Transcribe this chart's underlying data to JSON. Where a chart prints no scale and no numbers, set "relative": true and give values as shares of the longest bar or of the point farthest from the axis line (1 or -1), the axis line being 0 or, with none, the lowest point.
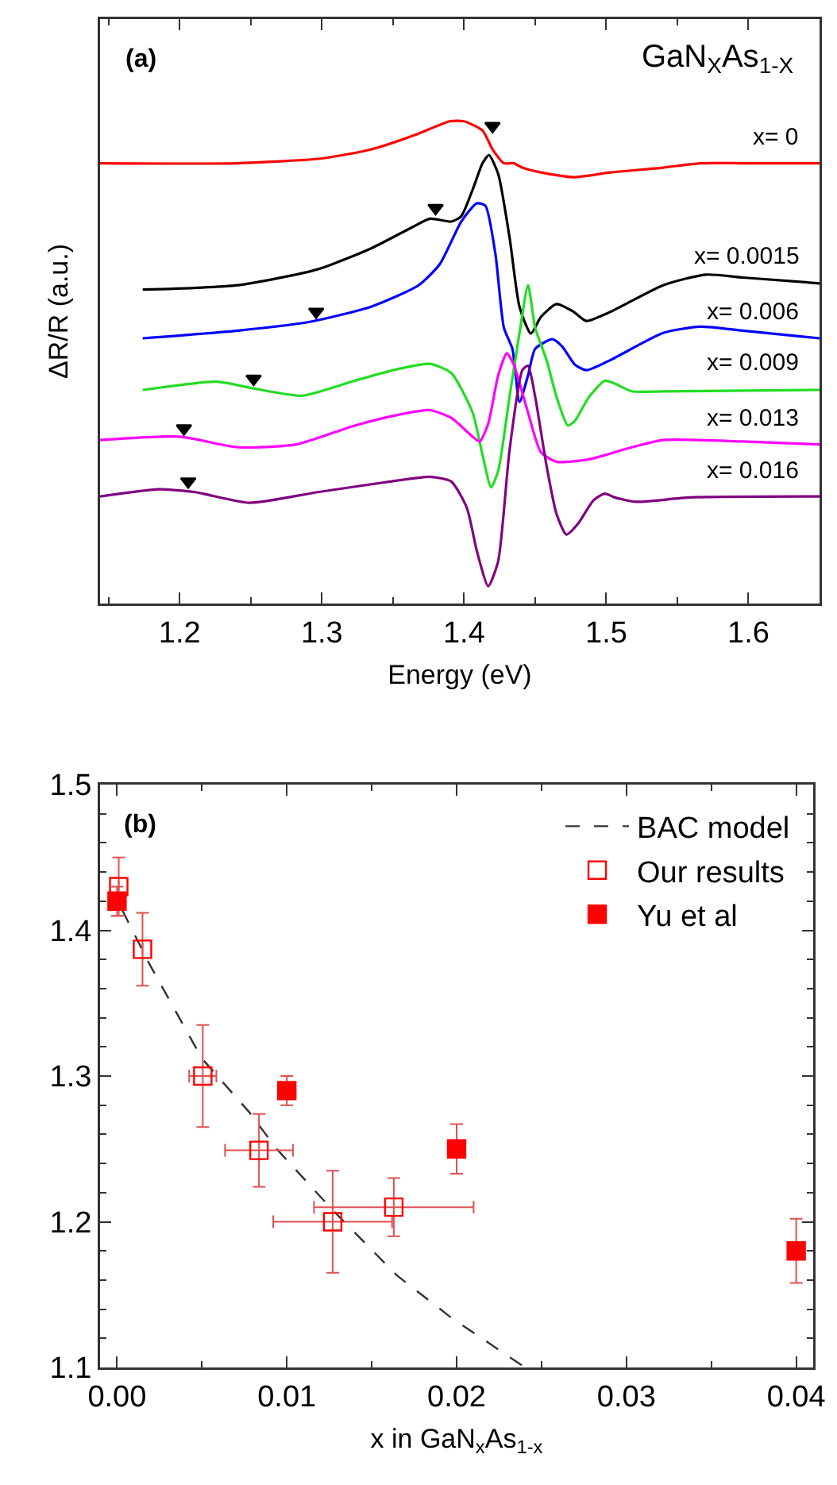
{
  "chart_data": [
    {
      "type": "line",
      "relative": true,
      "xlabel": "Energy (eV)",
      "ylabel": "ΔR/R (a.u.)",
      "xlim": [
        1.144,
        1.65
      ],
      "xticks": [
        1.2,
        1.3,
        1.4,
        1.5,
        1.6
      ],
      "grid": false,
      "legend": false,
      "line_style": "solid",
      "marker": "none",
      "annotations": [
        "(a)",
        "GaN$_{X}$As$_{1-X}$"
      ],
      "series": [
        {
          "name": "x= 0",
          "color": "#ff0000",
          "x": [
            1.144,
            1.24,
            1.3,
            1.335,
            1.365,
            1.39,
            1.4,
            1.413,
            1.42,
            1.428,
            1.435,
            1.441,
            1.454,
            1.477,
            1.503,
            1.54,
            1.566,
            1.596,
            1.65
          ],
          "values": [
            0.913,
            0.913,
            0.923,
            0.942,
            0.971,
            1.0,
            1.0,
            0.981,
            0.942,
            0.913,
            0.913,
            0.904,
            0.894,
            0.884,
            0.894,
            0.904,
            0.913,
            0.913,
            0.913
          ]
        },
        {
          "name": "x= 0.0015",
          "color": "#000000",
          "x": [
            1.174,
            1.241,
            1.297,
            1.335,
            1.364,
            1.376,
            1.391,
            1.398,
            1.406,
            1.413,
            1.4175,
            1.424,
            1.432,
            1.439,
            1.447,
            1.454,
            1.465,
            1.477,
            1.486,
            1.503,
            1.54,
            1.57,
            1.596,
            1.65
          ],
          "values": [
            0.651,
            0.66,
            0.693,
            0.737,
            0.781,
            0.798,
            0.792,
            0.803,
            0.858,
            0.913,
            0.93,
            0.891,
            0.759,
            0.615,
            0.56,
            0.594,
            0.621,
            0.605,
            0.586,
            0.605,
            0.66,
            0.682,
            0.676,
            0.664
          ]
        },
        {
          "name": "x= 0.006",
          "color": "#0000ff",
          "x": [
            1.174,
            1.241,
            1.293,
            1.335,
            1.368,
            1.383,
            1.398,
            1.409,
            1.415,
            1.422,
            1.428,
            1.434,
            1.439,
            1.445,
            1.45,
            1.462,
            1.469,
            1.478,
            1.486,
            1.503,
            1.54,
            1.566,
            1.596,
            1.65
          ],
          "values": [
            0.55,
            0.566,
            0.585,
            0.616,
            0.66,
            0.704,
            0.792,
            0.83,
            0.825,
            0.726,
            0.572,
            0.528,
            0.418,
            0.473,
            0.528,
            0.548,
            0.533,
            0.495,
            0.484,
            0.505,
            0.561,
            0.574,
            0.566,
            0.55
          ]
        },
        {
          "name": "x= 0.009",
          "color": "#22dd22",
          "x": [
            1.174,
            1.226,
            1.252,
            1.286,
            1.323,
            1.353,
            1.376,
            1.391,
            1.406,
            1.413,
            1.419,
            1.424,
            1.432,
            1.439,
            1.445,
            1.45,
            1.458,
            1.465,
            1.473,
            1.478,
            1.488,
            1.499,
            1.506,
            1.518,
            1.54,
            1.65
          ],
          "values": [
            0.443,
            0.46,
            0.446,
            0.431,
            0.462,
            0.486,
            0.497,
            0.478,
            0.396,
            0.308,
            0.241,
            0.275,
            0.429,
            0.561,
            0.66,
            0.572,
            0.505,
            0.429,
            0.369,
            0.379,
            0.429,
            0.462,
            0.456,
            0.44,
            0.44,
            0.443
          ]
        },
        {
          "name": "x= 0.013",
          "color": "#ff00ff",
          "x": [
            1.144,
            1.2,
            1.241,
            1.282,
            1.323,
            1.353,
            1.376,
            1.391,
            1.406,
            1.411,
            1.417,
            1.424,
            1.43,
            1.435,
            1.445,
            1.454,
            1.465,
            1.488,
            1.518,
            1.54,
            1.596,
            1.65
          ],
          "values": [
            0.339,
            0.346,
            0.324,
            0.33,
            0.369,
            0.391,
            0.401,
            0.385,
            0.346,
            0.336,
            0.373,
            0.473,
            0.519,
            0.495,
            0.396,
            0.314,
            0.294,
            0.299,
            0.324,
            0.339,
            0.336,
            0.33
          ]
        },
        {
          "name": "x= 0.016",
          "color": "#800080",
          "x": [
            1.144,
            1.185,
            1.211,
            1.249,
            1.297,
            1.353,
            1.376,
            1.391,
            1.402,
            1.409,
            1.417,
            1.424,
            1.432,
            1.441,
            1.445,
            1.45,
            1.458,
            1.465,
            1.472,
            1.48,
            1.491,
            1.499,
            1.506,
            1.521,
            1.559,
            1.65
          ],
          "values": [
            0.222,
            0.237,
            0.231,
            0.209,
            0.231,
            0.255,
            0.263,
            0.253,
            0.198,
            0.109,
            0.036,
            0.088,
            0.318,
            0.484,
            0.493,
            0.429,
            0.286,
            0.186,
            0.143,
            0.165,
            0.214,
            0.228,
            0.22,
            0.211,
            0.22,
            0.222
          ]
        },
        {
          "type": "scatter",
          "marker": "triangle",
          "color": "#000000",
          "x": [
            1.42,
            1.38,
            1.296,
            1.252,
            1.203,
            1.206
          ],
          "values": [
            0.99,
            0.82,
            0.605,
            0.466,
            0.363,
            0.253
          ]
        }
      ]
    },
    {
      "type": "scatter",
      "xlabel": "x in GaN$_{x}$As$_{1-x}$",
      "xlim": [
        -0.001,
        0.041
      ],
      "xticks": [
        {
          "value": 0,
          "label": "0.00"
        },
        {
          "value": 0.01,
          "label": "0.01"
        },
        {
          "value": 0.02,
          "label": "0.02"
        },
        {
          "value": 0.03,
          "label": "0.03"
        },
        {
          "value": 0.04,
          "label": "0.04"
        }
      ],
      "ylim": [
        1.1,
        1.5
      ],
      "yticks": [
        1.1,
        1.2,
        1.3,
        1.4,
        1.5
      ],
      "grid": false,
      "legend": "top right",
      "annotations": [
        "(b)"
      ],
      "series": [
        {
          "name": "BAC model",
          "type": "line",
          "line_style": "dashed",
          "marker": "none",
          "color": "#333333",
          "x": [
            0.0003,
            0.0019,
            0.005,
            0.0078,
            0.0094,
            0.0127,
            0.0165,
            0.0197,
            0.0239
          ],
          "values": [
            1.414,
            1.377,
            1.312,
            1.275,
            1.25,
            1.208,
            1.163,
            1.134,
            1.101
          ]
        },
        {
          "name": "Our results",
          "marker": "square-open",
          "color": "#ff0000",
          "x": [
            0.0001,
            0.0015,
            0.00505,
            0.00836,
            0.0127,
            0.0163
          ],
          "values": [
            1.43,
            1.387,
            1.3,
            1.249,
            1.2,
            1.21
          ],
          "errors": [
            0.02,
            0.025,
            0.035,
            0.025,
            0.035,
            0.02
          ],
          "xerrors": [
            null,
            null,
            0.0008,
            0.002,
            0.0035,
            0.0047
          ]
        },
        {
          "name": "Yu et al",
          "marker": "square",
          "color": "#ff0000",
          "x": [
            0.0,
            0.01,
            0.02,
            0.04
          ],
          "values": [
            1.42,
            1.29,
            1.25,
            1.18
          ],
          "errors": [
            0.01,
            0.01,
            0.017,
            0.022
          ]
        }
      ]
    }
  ]
}
